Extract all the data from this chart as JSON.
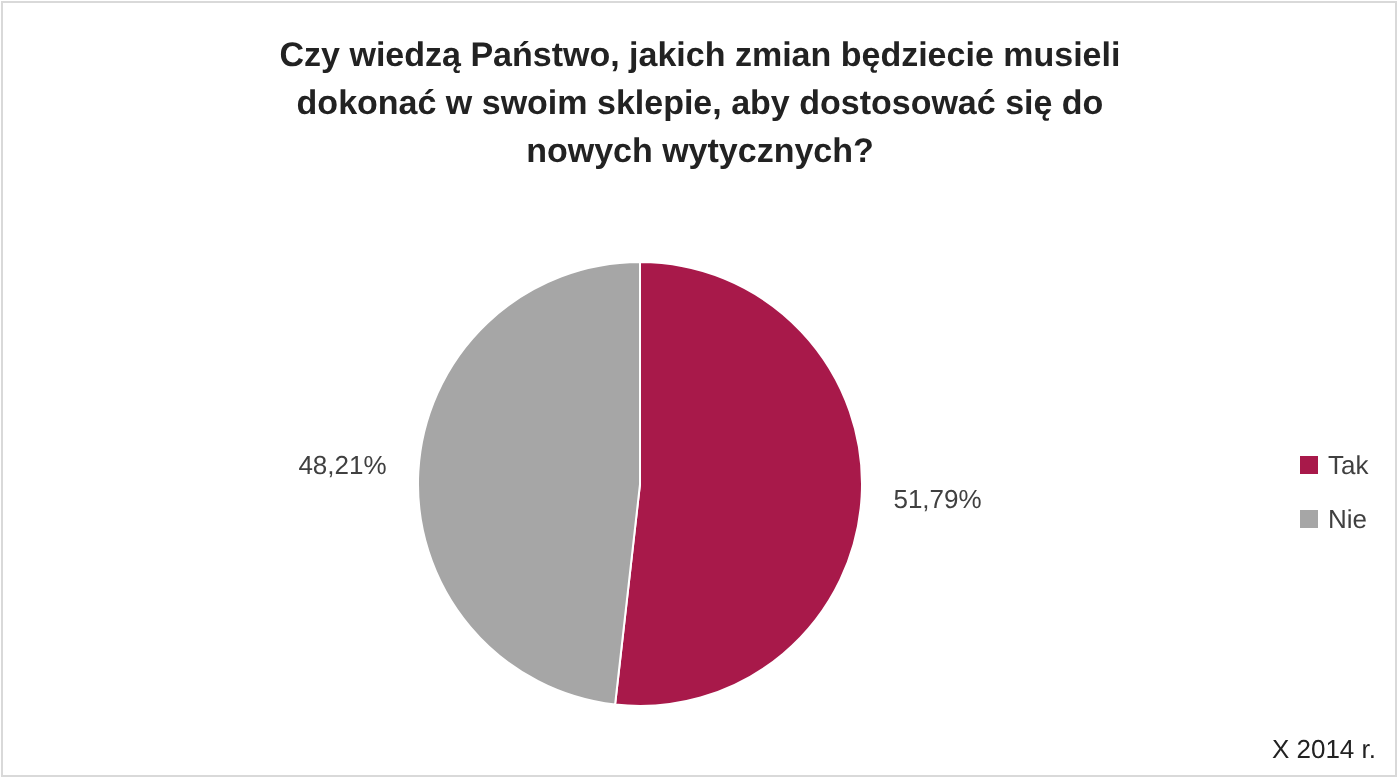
{
  "chart_data": {
    "type": "pie",
    "title": "Czy wiedzą Państwo, jakich zmian będziecie musieli dokonać w swoim sklepie, aby dostosować się do nowych wytycznych?",
    "categories": [
      "Tak",
      "Nie"
    ],
    "values": [
      51.79,
      48.21
    ],
    "colors": [
      "#a8194a",
      "#a6a6a6"
    ],
    "value_labels": [
      "51,79%",
      "48,21%"
    ],
    "legend": "right",
    "annotations": [
      "X 2014 r."
    ]
  }
}
